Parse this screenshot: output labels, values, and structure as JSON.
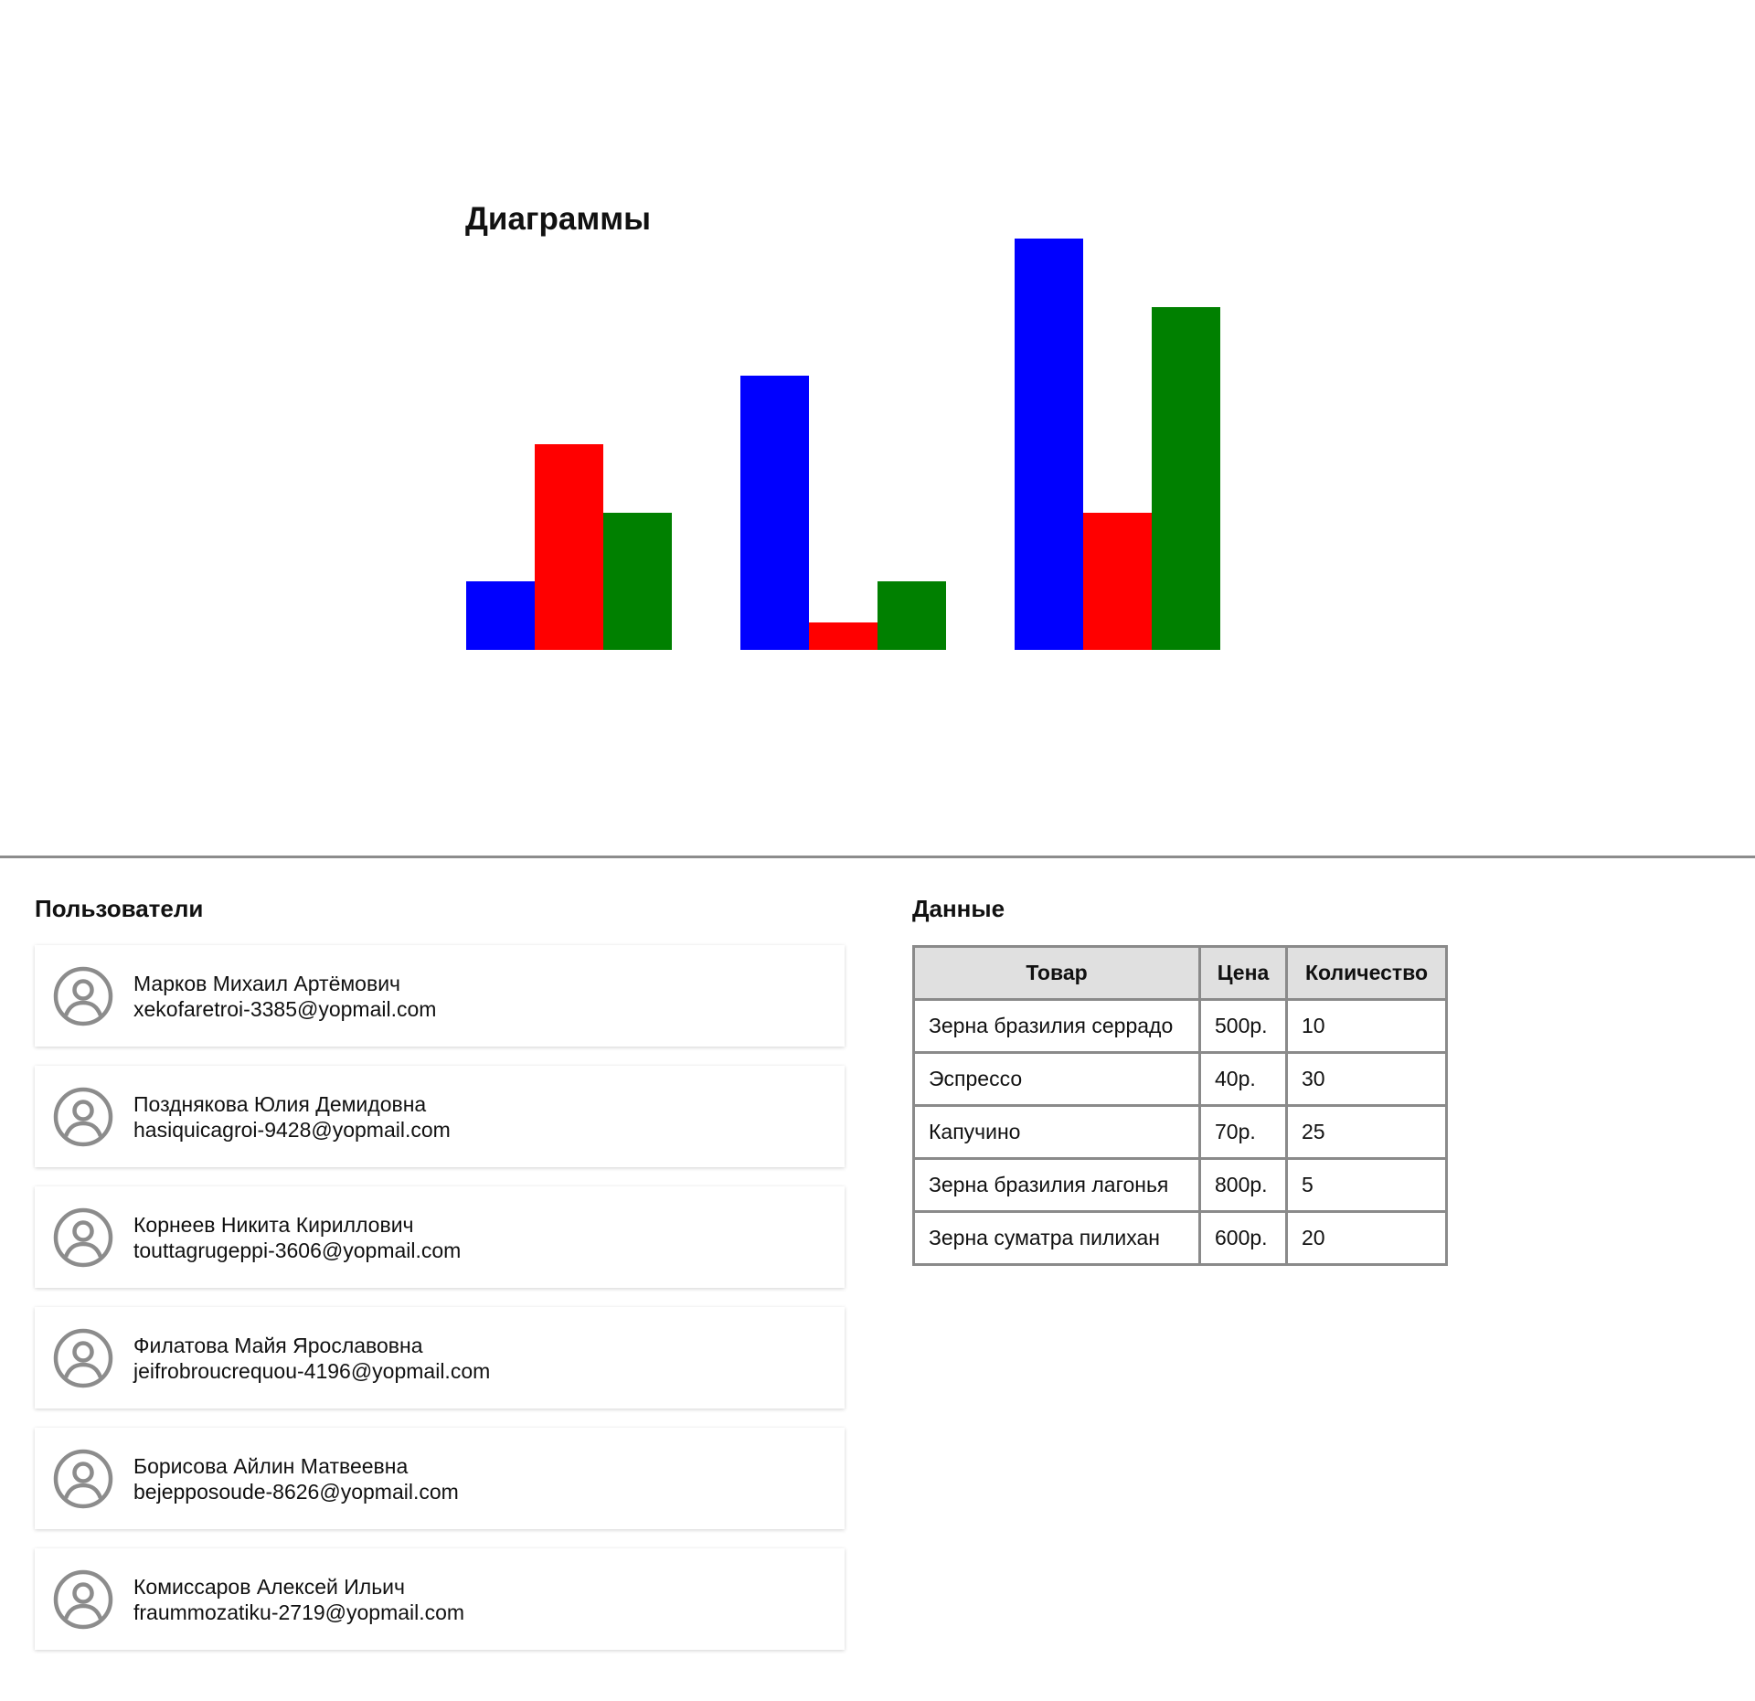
{
  "chart_data": {
    "type": "bar",
    "title": "Диаграммы",
    "categories": [
      "",
      "",
      ""
    ],
    "series": [
      {
        "color": "#0000ff",
        "values": [
          1,
          4,
          6
        ]
      },
      {
        "color": "#ff0000",
        "values": [
          3,
          0.4,
          2
        ]
      },
      {
        "color": "#008000",
        "values": [
          2,
          1,
          5
        ]
      }
    ],
    "ylim": [
      0,
      6
    ],
    "grid": false,
    "axes": false,
    "legend": "none"
  },
  "users": {
    "title": "Пользователи",
    "avatar_icon": "user-circle-icon",
    "items": [
      {
        "name": "Марков Михаил Артёмович",
        "email": "xekofaretroi-3385@yopmail.com"
      },
      {
        "name": "Позднякова Юлия Демидовна",
        "email": "hasiquicagroi-9428@yopmail.com"
      },
      {
        "name": "Корнеев Никита Кириллович",
        "email": "touttagrugeppi-3606@yopmail.com"
      },
      {
        "name": "Филатова Майя Ярославовна",
        "email": "jeifrobroucrequou-4196@yopmail.com"
      },
      {
        "name": "Борисова Айлин Матвеевна",
        "email": "bejepposoude-8626@yopmail.com"
      },
      {
        "name": "Комиссаров Алексей Ильич",
        "email": "fraummozatiku-2719@yopmail.com"
      }
    ]
  },
  "data_table": {
    "title": "Данные",
    "headers": [
      "Товар",
      "Цена",
      "Количество"
    ],
    "rows": [
      [
        "Зерна бразилия серрадо",
        "500р.",
        "10"
      ],
      [
        "Эспрессо",
        "40р.",
        "30"
      ],
      [
        "Капучино",
        "70р.",
        "25"
      ],
      [
        "Зерна бразилия лагонья",
        "800р.",
        "5"
      ],
      [
        "Зерна суматра пилихан",
        "600р.",
        "20"
      ]
    ]
  },
  "colors": {
    "divider": "#8c8c8c",
    "table_border": "#8a8a8a",
    "table_header_bg": "#e0e0e0",
    "avatar": "#8c8c8c"
  }
}
